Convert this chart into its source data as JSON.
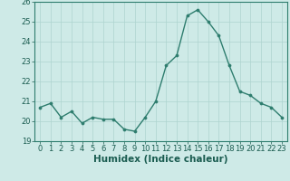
{
  "x": [
    0,
    1,
    2,
    3,
    4,
    5,
    6,
    7,
    8,
    9,
    10,
    11,
    12,
    13,
    14,
    15,
    16,
    17,
    18,
    19,
    20,
    21,
    22,
    23
  ],
  "y": [
    20.7,
    20.9,
    20.2,
    20.5,
    19.9,
    20.2,
    20.1,
    20.1,
    19.6,
    19.5,
    20.2,
    21.0,
    22.8,
    23.3,
    25.3,
    25.6,
    25.0,
    24.3,
    22.8,
    21.5,
    21.3,
    20.9,
    20.7,
    20.2
  ],
  "line_color": "#2e7d6e",
  "marker_color": "#2e7d6e",
  "background_color": "#ceeae7",
  "grid_color": "#add4d0",
  "xlabel": "Humidex (Indice chaleur)",
  "ylim": [
    19,
    26
  ],
  "xlim_min": -0.5,
  "xlim_max": 23.5,
  "yticks": [
    19,
    20,
    21,
    22,
    23,
    24,
    25,
    26
  ],
  "xticks": [
    0,
    1,
    2,
    3,
    4,
    5,
    6,
    7,
    8,
    9,
    10,
    11,
    12,
    13,
    14,
    15,
    16,
    17,
    18,
    19,
    20,
    21,
    22,
    23
  ],
  "xlabel_fontsize": 7.5,
  "tick_fontsize": 6.0,
  "linewidth": 1.0,
  "markersize": 2.2
}
